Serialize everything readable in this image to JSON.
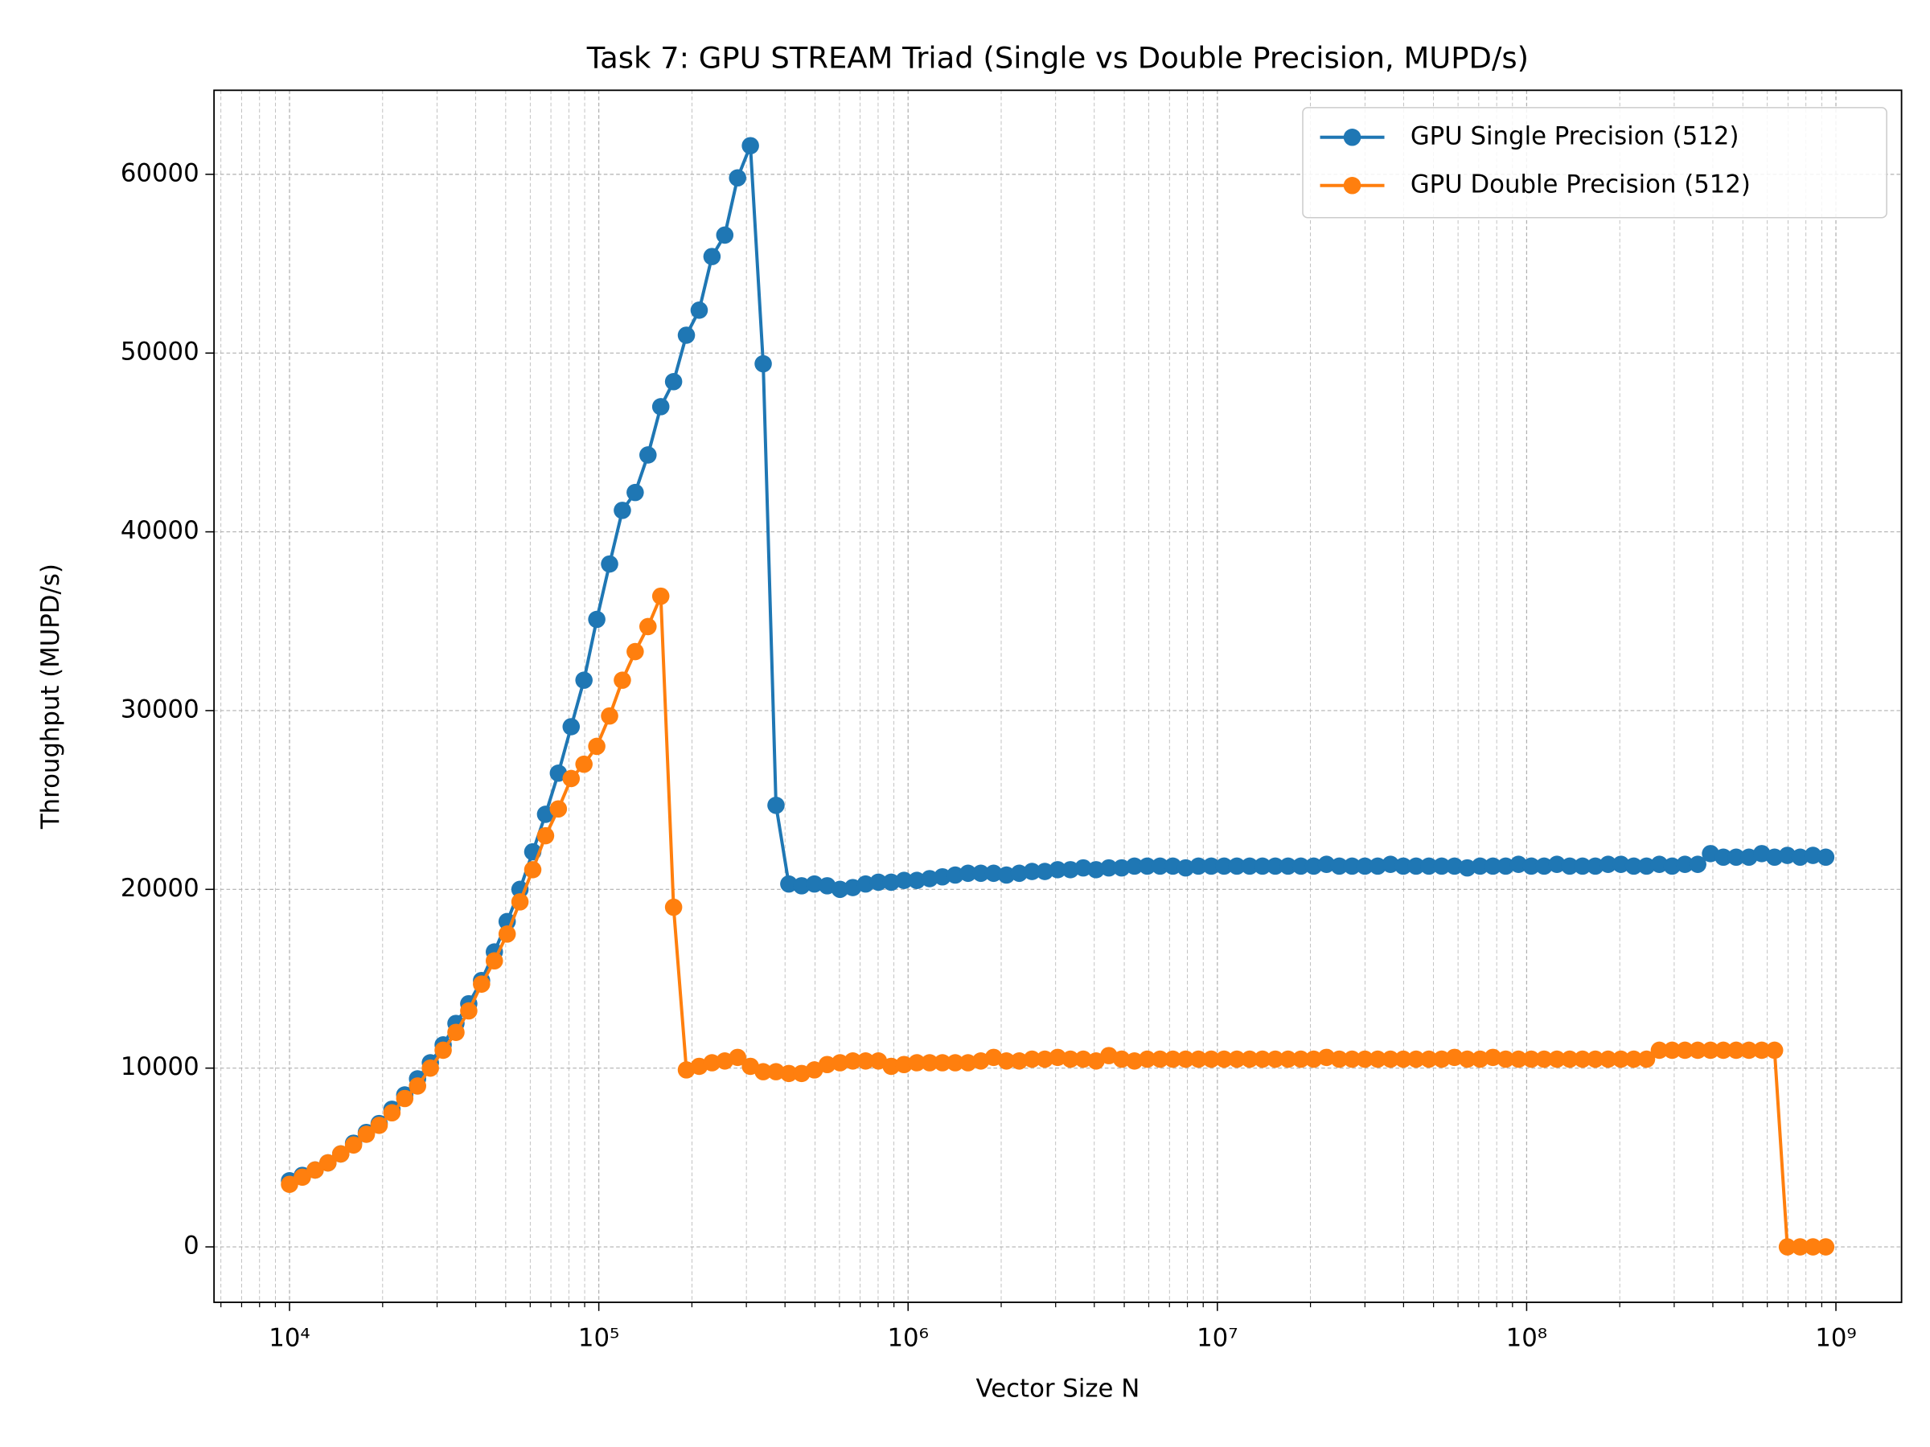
{
  "chart_data": {
    "type": "line",
    "title": "Task 7: GPU STREAM Triad (Single vs Double Precision, MUPD/s)",
    "xlabel": "Vector Size N",
    "ylabel": "Throughput (MUPD/s)",
    "xscale": "log",
    "xlim": [
      5700,
      1630000000
    ],
    "ylim": [
      -3100,
      64700
    ],
    "xticks": [
      {
        "value": 10000,
        "label": "10⁴"
      },
      {
        "value": 100000,
        "label": "10⁵"
      },
      {
        "value": 1000000,
        "label": "10⁶"
      },
      {
        "value": 10000000,
        "label": "10⁷"
      },
      {
        "value": 100000000,
        "label": "10⁸"
      },
      {
        "value": 1000000000,
        "label": "10⁹"
      }
    ],
    "yticks": [
      0,
      10000,
      20000,
      30000,
      40000,
      50000,
      60000
    ],
    "grid": true,
    "minor_grid": true,
    "legend": "upper right",
    "x": [
      10000,
      11000,
      12100,
      13310,
      14641,
      16105,
      17716,
      19487,
      21436,
      23579,
      25937,
      28531,
      31384,
      34523,
      37975,
      41772,
      45950,
      50545,
      55599,
      61159,
      67275,
      74002,
      81403,
      89543,
      98497,
      108347,
      119182,
      131100,
      144210,
      158631,
      174494,
      191943,
      211138,
      232252,
      255477,
      281024,
      309127,
      340039,
      374043,
      411448,
      452593,
      497852,
      547637,
      602401,
      662641,
      728905,
      801795,
      881975,
      970172,
      1067190,
      1173909,
      1291299,
      1420429,
      1562473,
      1718719,
      1890591,
      2079651,
      2287616,
      2516377,
      2768015,
      3044816,
      3349298,
      3684228,
      4052651,
      4457916,
      4903707,
      5394078,
      5933486,
      6526834,
      7179518,
      7897470,
      8687217,
      9555938,
      10511532,
      11562685,
      12718954,
      13990849,
      15389934,
      16928927,
      18621820,
      20484002,
      22532402,
      24785643,
      27264207,
      29990628,
      32989690,
      36288659,
      39917525,
      43909278,
      48300206,
      53130226,
      58443249,
      64287574,
      70716331,
      77787964,
      85566760,
      94123437,
      103535780,
      113889358,
      125278294,
      137806123,
      151586736,
      166745409,
      183419950,
      201761945,
      221950140,
      244145154,
      268559669,
      295415636,
      324957200,
      357452920,
      393198213,
      432518034,
      475769837,
      523346821,
      575681503,
      633249653,
      696574618,
      766232080,
      842855288,
      927122390
    ],
    "series": [
      {
        "name": "GPU Single Precision (512)",
        "color": "#1f77b4",
        "values": [
          3700,
          4000,
          4300,
          4700,
          5200,
          5800,
          6400,
          6900,
          7700,
          8500,
          9400,
          10300,
          11300,
          12500,
          13600,
          14900,
          16500,
          18200,
          20000,
          22100,
          24200,
          26500,
          29100,
          31700,
          35100,
          38200,
          41200,
          42200,
          44300,
          47000,
          48400,
          51000,
          52400,
          55400,
          56600,
          59800,
          61600,
          49400,
          24700,
          20300,
          20200,
          20300,
          20200,
          20000,
          20100,
          20300,
          20400,
          20400,
          20500,
          20500,
          20600,
          20700,
          20800,
          20900,
          20900,
          20900,
          20800,
          20900,
          21000,
          21000,
          21100,
          21100,
          21200,
          21100,
          21200,
          21200,
          21300,
          21300,
          21300,
          21300,
          21200,
          21300,
          21300,
          21300,
          21300,
          21300,
          21300,
          21300,
          21300,
          21300,
          21300,
          21400,
          21300,
          21300,
          21300,
          21300,
          21400,
          21300,
          21300,
          21300,
          21300,
          21300,
          21200,
          21300,
          21300,
          21300,
          21400,
          21300,
          21300,
          21400,
          21300,
          21300,
          21300,
          21400,
          21400,
          21300,
          21300,
          21400,
          21300,
          21400,
          21400,
          22000,
          21800,
          21800,
          21800,
          22000,
          21800,
          21900,
          21800,
          21900,
          21800
        ]
      },
      {
        "name": "GPU Double Precision (512)",
        "color": "#ff7f0e",
        "values": [
          3500,
          3900,
          4300,
          4700,
          5200,
          5700,
          6300,
          6800,
          7500,
          8300,
          9000,
          10000,
          11000,
          12000,
          13200,
          14700,
          16000,
          17500,
          19300,
          21100,
          23000,
          24500,
          26200,
          27000,
          28000,
          29700,
          31700,
          33300,
          34700,
          36400,
          19000,
          9900,
          10100,
          10300,
          10400,
          10600,
          10100,
          9800,
          9800,
          9700,
          9700,
          9900,
          10200,
          10300,
          10400,
          10400,
          10400,
          10100,
          10200,
          10300,
          10300,
          10300,
          10300,
          10300,
          10400,
          10600,
          10400,
          10400,
          10500,
          10500,
          10600,
          10500,
          10500,
          10400,
          10700,
          10500,
          10400,
          10500,
          10500,
          10500,
          10500,
          10500,
          10500,
          10500,
          10500,
          10500,
          10500,
          10500,
          10500,
          10500,
          10500,
          10600,
          10500,
          10500,
          10500,
          10500,
          10500,
          10500,
          10500,
          10500,
          10500,
          10600,
          10500,
          10500,
          10600,
          10500,
          10500,
          10500,
          10500,
          10500,
          10500,
          10500,
          10500,
          10500,
          10500,
          10500,
          10500,
          11000,
          11000,
          11000,
          11000,
          11000,
          11000,
          11000,
          11000,
          11000,
          11000,
          0,
          0,
          0,
          0
        ]
      }
    ]
  }
}
